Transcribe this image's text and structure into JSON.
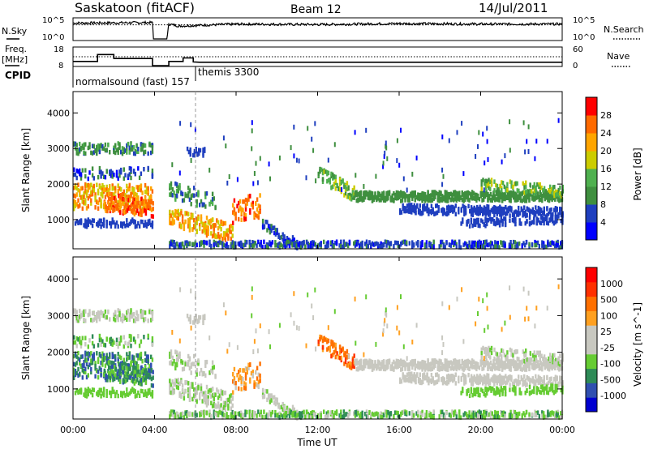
{
  "header": {
    "station": "Saskatoon (fitACF)",
    "beam": "Beam 12",
    "date": "14/Jul/2011"
  },
  "sky_panel": {
    "left_label": "N.Sky",
    "right_label": "N.Search",
    "left_ticks": [
      "10^5",
      "10^0"
    ],
    "right_ticks": [
      "10^5",
      "10^0"
    ]
  },
  "freq_panel": {
    "left_label_1": "Freq.",
    "left_label_2": "[MHz]",
    "right_label": "Nave",
    "left_ticks": [
      "18",
      "8"
    ],
    "right_ticks": [
      "60",
      "0"
    ]
  },
  "cpid": {
    "label": "CPID",
    "segments": [
      {
        "name": "normalsound (fast) 157",
        "start_hour": 0
      },
      {
        "name": "themis 3300",
        "start_hour": 6.0
      }
    ]
  },
  "x_axis": {
    "label": "Time UT",
    "ticks": [
      "00:00",
      "04:00",
      "08:00",
      "12:00",
      "16:00",
      "20:00",
      "00:00"
    ]
  },
  "colors": {
    "power": [
      "#0000ff",
      "#1f3fbf",
      "#3f8f3f",
      "#4fb04f",
      "#cccc00",
      "#ffa500",
      "#ff6a00",
      "#ff0000"
    ],
    "velocity": [
      "#0000d0",
      "#3050b0",
      "#2e8b57",
      "#66cc33",
      "#c8c8c0",
      "#c8c8c0",
      "#ffa020",
      "#ff7000",
      "#ff3000",
      "#ff0000"
    ]
  },
  "chart_data": [
    {
      "type": "line",
      "name": "sky-search-noise",
      "x_range_hours": [
        0,
        24
      ],
      "series": [
        {
          "name": "N.Sky",
          "points": [
            [
              0,
              3.2
            ],
            [
              3.9,
              3.3
            ],
            [
              3.95,
              0
            ],
            [
              4.6,
              0
            ],
            [
              4.7,
              3.0
            ],
            [
              5.2,
              2.6
            ],
            [
              8,
              3.0
            ],
            [
              12,
              2.9
            ],
            [
              16,
              3.1
            ],
            [
              20,
              3.0
            ],
            [
              24,
              3.0
            ]
          ]
        }
      ]
    },
    {
      "type": "line",
      "name": "frequency-nave",
      "x_range_hours": [
        0,
        24
      ],
      "series": [
        {
          "name": "Freq.",
          "points": [
            [
              0,
              10.5
            ],
            [
              1.2,
              10.5
            ],
            [
              1.2,
              14.5
            ],
            [
              2.0,
              14.5
            ],
            [
              2.0,
              12.2
            ],
            [
              3.9,
              12.2
            ],
            [
              3.9,
              8
            ],
            [
              4.7,
              8
            ],
            [
              4.7,
              10.5
            ],
            [
              5.4,
              10.5
            ],
            [
              5.4,
              12.5
            ],
            [
              5.9,
              12.5
            ],
            [
              5.9,
              10.2
            ],
            [
              6.2,
              10
            ],
            [
              24,
              10
            ]
          ]
        },
        {
          "name": "Nave",
          "points": [
            [
              0,
              22
            ],
            [
              24,
              22
            ]
          ]
        }
      ]
    },
    {
      "type": "heatmap",
      "title": "",
      "name": "power",
      "ylabel": "Slant Range [km]",
      "xlabel": "Time UT",
      "x_range_hours": [
        0,
        24
      ],
      "ylim": [
        180,
        4600
      ],
      "yticks": [
        1000,
        2000,
        3000,
        4000
      ],
      "colorbar": {
        "label": "Power [dB]",
        "ticks": [
          "28",
          "24",
          "20",
          "16",
          "12",
          "8",
          "4"
        ]
      }
    },
    {
      "type": "heatmap",
      "title": "",
      "name": "velocity",
      "ylabel": "Slant Range [km]",
      "xlabel": "Time UT",
      "x_range_hours": [
        0,
        24
      ],
      "ylim": [
        180,
        4600
      ],
      "yticks": [
        1000,
        2000,
        3000,
        4000
      ],
      "colorbar": {
        "label": "Velocity [m s^-1]",
        "ticks": [
          "1000",
          "500",
          "100",
          "25",
          "-25",
          "-100",
          "-500",
          "-1000"
        ]
      }
    }
  ]
}
